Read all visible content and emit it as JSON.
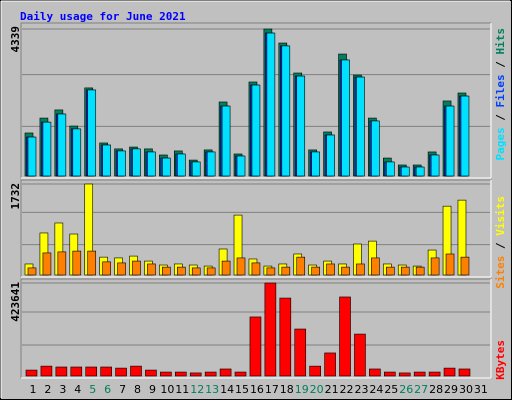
{
  "chart_data": [
    {
      "type": "bar",
      "title": "Daily usage for June 2021",
      "ylim": [
        0,
        4339
      ],
      "yticks": [
        4339
      ],
      "legend_separator": " / ",
      "series": [
        {
          "name": "Hits",
          "color": "#00805c",
          "values": [
            1270,
            1710,
            1950,
            1475,
            2600,
            975,
            800,
            855,
            800,
            620,
            740,
            470,
            770,
            2185,
            650,
            2775,
            4339,
            3925,
            3040,
            770,
            1300,
            3600,
            2980,
            1710,
            530,
            325,
            325,
            710,
            2215,
            2450,
            null
          ]
        },
        {
          "name": "Files",
          "color": "#0040ff",
          "values": [
            1150,
            1590,
            1830,
            1390,
            2540,
            915,
            740,
            800,
            710,
            530,
            650,
            415,
            710,
            2065,
            590,
            2685,
            4220,
            3840,
            2950,
            710,
            1210,
            3425,
            2920,
            1625,
            415,
            265,
            265,
            620,
            2065,
            2360,
            null
          ]
        },
        {
          "name": "Pages",
          "color": "#00e0ff",
          "values": [
            1150,
            1590,
            1830,
            1390,
            2540,
            915,
            740,
            800,
            710,
            530,
            650,
            415,
            710,
            2065,
            590,
            2685,
            4220,
            3840,
            2950,
            710,
            1210,
            3425,
            2920,
            1625,
            415,
            265,
            265,
            620,
            2065,
            2360,
            null
          ]
        }
      ]
    },
    {
      "type": "bar",
      "ylim": [
        0,
        1732
      ],
      "yticks": [
        1732
      ],
      "legend_separator": " / ",
      "series": [
        {
          "name": "Visits",
          "color": "#ffff00",
          "values": [
            210,
            800,
            990,
            780,
            1732,
            340,
            325,
            360,
            265,
            190,
            210,
            190,
            170,
            495,
            1140,
            305,
            170,
            210,
            400,
            190,
            265,
            210,
            590,
            645,
            210,
            190,
            170,
            475,
            1310,
            1425,
            null
          ]
        },
        {
          "name": "Sites",
          "color": "#ff8000",
          "values": [
            135,
            420,
            440,
            455,
            455,
            250,
            230,
            265,
            210,
            150,
            150,
            135,
            135,
            265,
            325,
            230,
            135,
            150,
            340,
            150,
            210,
            150,
            210,
            325,
            150,
            150,
            150,
            325,
            400,
            340,
            null
          ]
        }
      ]
    },
    {
      "type": "bar",
      "ylim": [
        0,
        423641
      ],
      "yticks": [
        423641
      ],
      "categories": [
        "1",
        "2",
        "3",
        "4",
        "5",
        "6",
        "7",
        "8",
        "9",
        "10",
        "11",
        "12",
        "13",
        "14",
        "15",
        "16",
        "17",
        "18",
        "19",
        "20",
        "21",
        "22",
        "23",
        "24",
        "25",
        "26",
        "27",
        "28",
        "29",
        "30",
        "31"
      ],
      "series": [
        {
          "name": "KBytes",
          "color": "#ff0000",
          "values": [
            27000,
            45000,
            41000,
            41000,
            41000,
            41000,
            36000,
            45000,
            27000,
            18000,
            18000,
            14000,
            18000,
            32000,
            18000,
            269000,
            423641,
            355000,
            214000,
            45000,
            105000,
            360000,
            191000,
            32000,
            18000,
            14000,
            18000,
            18000,
            36000,
            32000,
            null
          ]
        }
      ]
    }
  ]
}
